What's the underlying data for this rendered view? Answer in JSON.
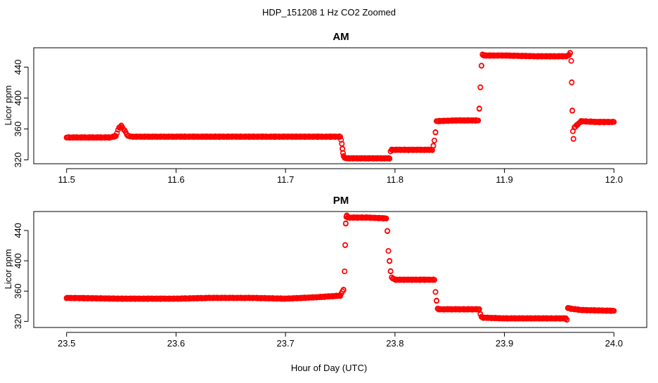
{
  "suptitle": "HDP_151208  1 Hz CO2 Zoomed",
  "colors": {
    "points": "#ff0000",
    "axes": "#000000",
    "background": "#ffffff"
  },
  "chart_data": [
    {
      "type": "scatter",
      "title": "AM",
      "xlabel": "",
      "ylabel": "Licor ppm",
      "xlim": [
        11.47,
        12.03
      ],
      "ylim": [
        315,
        465
      ],
      "xticks": [
        "11.5",
        "11.6",
        "11.7",
        "11.8",
        "11.9",
        "12.0"
      ],
      "yticks": [
        "320",
        "360",
        "400",
        "440"
      ],
      "grid": false,
      "series": [
        {
          "x": [
            11.5,
            11.52,
            11.54,
            11.545,
            11.548,
            11.55,
            11.553,
            11.556,
            11.56,
            11.6,
            11.65,
            11.7,
            11.75,
            11.7515,
            11.752,
            11.7525,
            11.753,
            11.754,
            11.755,
            11.775,
            11.795,
            11.796,
            11.797,
            11.815,
            11.834,
            11.835,
            11.836,
            11.837,
            11.838,
            11.855,
            11.876,
            11.877,
            11.878,
            11.879,
            11.88,
            11.881,
            11.9,
            11.93,
            11.957,
            11.959,
            11.96,
            11.961,
            11.9615,
            11.962,
            11.9625,
            11.963,
            11.964,
            11.97,
            11.985,
            12.0
          ],
          "y": [
            349,
            349,
            349,
            351,
            362,
            364,
            358,
            351,
            350,
            350,
            350,
            350,
            350,
            341,
            334,
            329,
            325,
            323,
            322,
            322,
            322,
            331,
            333,
            333,
            333,
            338,
            345,
            356,
            370,
            371,
            371,
            386,
            414,
            442,
            456,
            455,
            455,
            454,
            454,
            456,
            458,
            448,
            420,
            384,
            357,
            347,
            362,
            370,
            369,
            369
          ]
        }
      ]
    },
    {
      "type": "scatter",
      "title": "PM",
      "xlabel": "Hour of Day (UTC)",
      "ylabel": "Licor ppm",
      "xlim": [
        23.47,
        24.03
      ],
      "ylim": [
        312,
        465
      ],
      "xticks": [
        "23.5",
        "23.6",
        "23.7",
        "23.8",
        "23.9",
        "24.0"
      ],
      "yticks": [
        "320",
        "360",
        "400",
        "440"
      ],
      "grid": false,
      "series": [
        {
          "x": [
            23.5,
            23.55,
            23.6,
            23.63,
            23.65,
            23.67,
            23.7,
            23.73,
            23.75,
            23.753,
            23.754,
            23.7545,
            23.755,
            23.7555,
            23.756,
            23.757,
            23.758,
            23.775,
            23.792,
            23.793,
            23.794,
            23.795,
            23.796,
            23.797,
            23.8,
            23.82,
            23.836,
            23.837,
            23.838,
            23.839,
            23.84,
            23.86,
            23.877,
            23.878,
            23.879,
            23.88,
            23.9,
            23.92,
            23.94,
            23.956,
            23.957,
            23.958,
            23.96,
            23.97,
            24.0
          ],
          "y": [
            351,
            350,
            350,
            351,
            351,
            351,
            350,
            352,
            354,
            362,
            386,
            421,
            449,
            458,
            460,
            457,
            457,
            457,
            456,
            439,
            413,
            400,
            386,
            378,
            375,
            375,
            375,
            359,
            347,
            337,
            336,
            336,
            336,
            330,
            326,
            325,
            324,
            324,
            324,
            324,
            322,
            338,
            337,
            335,
            334
          ]
        }
      ]
    }
  ]
}
